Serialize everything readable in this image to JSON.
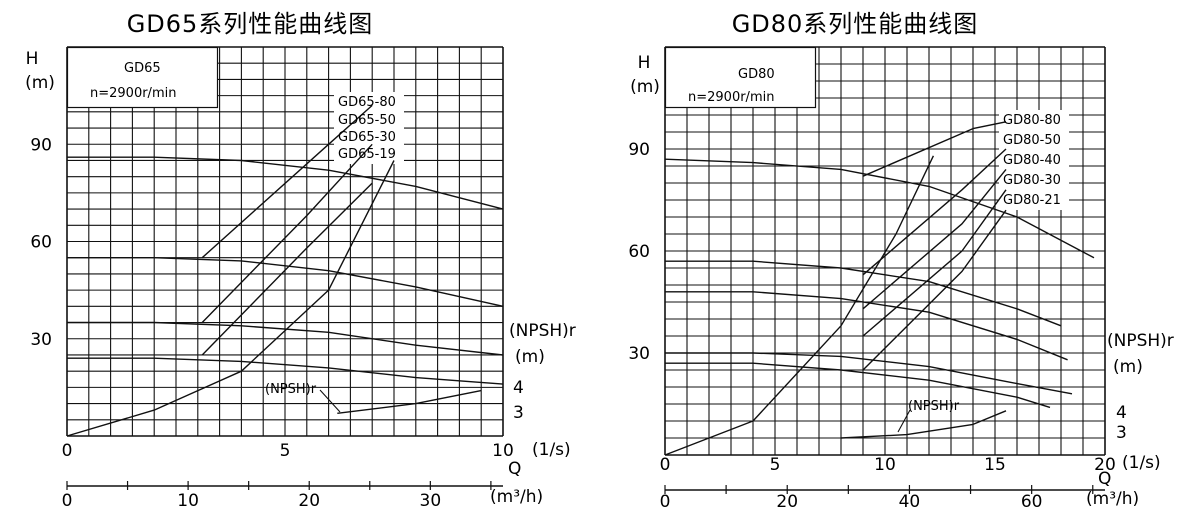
{
  "chart_data": [
    {
      "type": "line",
      "title": "GD65系列性能曲线图",
      "model_label": "GD65",
      "speed_label": "n=2900r/min",
      "y_axis_label": [
        "H",
        "(m)"
      ],
      "y_ticks": [
        "30",
        "60",
        "90"
      ],
      "x_axis_unit": "(1/s)",
      "x_axis_name": "Q",
      "x_ticks": [
        "0",
        "5",
        "10"
      ],
      "x2_axis_unit": "(m³/h)",
      "x2_ticks": [
        "0",
        "10",
        "20",
        "30"
      ],
      "right_axis_label": [
        "(NPSH)r",
        "(m)"
      ],
      "right_ticks": [
        "4",
        "3"
      ],
      "npsh_label": "(NPSH)r",
      "xlim": [
        0,
        10
      ],
      "ylim": [
        0,
        120
      ],
      "legend": [
        "GD65-80",
        "GD65-50",
        "GD65-30",
        "GD65-19"
      ],
      "series": [
        {
          "name": "GD65-80",
          "kind": "head",
          "x": [
            0,
            2,
            4,
            6,
            8,
            10
          ],
          "y": [
            86,
            86,
            85,
            82,
            77,
            70
          ]
        },
        {
          "name": "GD65-50",
          "kind": "head",
          "x": [
            0,
            2,
            4,
            6,
            8,
            10
          ],
          "y": [
            55,
            55,
            54,
            51,
            46,
            40
          ]
        },
        {
          "name": "GD65-30",
          "kind": "head",
          "x": [
            0,
            2,
            4,
            6,
            8,
            10
          ],
          "y": [
            35,
            35,
            34,
            32,
            28,
            25
          ]
        },
        {
          "name": "GD65-19",
          "kind": "head",
          "x": [
            0,
            2,
            4,
            6,
            8,
            10
          ],
          "y": [
            24,
            24,
            23,
            21,
            18,
            16
          ]
        },
        {
          "name": "efficiency-80",
          "kind": "efficiency",
          "x": [
            3.1,
            6.0,
            7.0
          ],
          "y": [
            55,
            90,
            102
          ]
        },
        {
          "name": "efficiency-50",
          "kind": "efficiency",
          "x": [
            3.1,
            5.5,
            7.0
          ],
          "y": [
            35,
            68,
            90
          ]
        },
        {
          "name": "efficiency-30",
          "kind": "efficiency",
          "x": [
            3.1,
            5.5,
            7.0
          ],
          "y": [
            25,
            58,
            78
          ]
        },
        {
          "name": "efficiency-all",
          "kind": "efficiency",
          "x": [
            0,
            2,
            4,
            6,
            7.5
          ],
          "y": [
            0,
            8,
            20,
            45,
            85
          ]
        },
        {
          "name": "npsh",
          "kind": "npsh",
          "x": [
            6.2,
            8,
            9.5
          ],
          "y": [
            7,
            10,
            14
          ]
        }
      ]
    },
    {
      "type": "line",
      "title": "GD80系列性能曲线图",
      "model_label": "GD80",
      "speed_label": "n=2900r/min",
      "y_axis_label": [
        "H",
        "(m)"
      ],
      "y_ticks": [
        "30",
        "60",
        "90"
      ],
      "x_axis_unit": "(1/s)",
      "x_axis_name": "Q",
      "x_ticks": [
        "0",
        "5",
        "10",
        "15",
        "20"
      ],
      "x2_axis_unit": "(m³/h)",
      "x2_ticks": [
        "0",
        "20",
        "40",
        "60"
      ],
      "right_axis_label": [
        "(NPSH)r",
        "(m)"
      ],
      "right_ticks": [
        "4",
        "3"
      ],
      "npsh_label": "(NPSH)r",
      "xlim": [
        0,
        20
      ],
      "ylim": [
        0,
        120
      ],
      "legend": [
        "GD80-80",
        "GD80-50",
        "GD80-40",
        "GD80-30",
        "GD80-21"
      ],
      "series": [
        {
          "name": "GD80-80",
          "kind": "head",
          "x": [
            0,
            4,
            8,
            12,
            16,
            19.5
          ],
          "y": [
            87,
            86,
            84,
            79,
            70,
            58
          ]
        },
        {
          "name": "GD80-50",
          "kind": "head",
          "x": [
            0,
            4,
            8,
            12,
            16,
            18
          ],
          "y": [
            57,
            57,
            55,
            51,
            43,
            38
          ]
        },
        {
          "name": "GD80-40",
          "kind": "head",
          "x": [
            0,
            4,
            8,
            12,
            16,
            18.3
          ],
          "y": [
            48,
            48,
            46,
            42,
            34,
            28
          ]
        },
        {
          "name": "GD80-30",
          "kind": "head",
          "x": [
            0,
            4,
            8,
            12,
            16,
            18.5
          ],
          "y": [
            30,
            30,
            29,
            26,
            21,
            18
          ]
        },
        {
          "name": "GD80-21",
          "kind": "head",
          "x": [
            0,
            4,
            8,
            12,
            16,
            17.5
          ],
          "y": [
            27,
            27,
            25,
            22,
            17,
            14
          ]
        },
        {
          "name": "efficiency-80",
          "kind": "efficiency",
          "x": [
            9,
            14,
            15.5
          ],
          "y": [
            82,
            96,
            98
          ]
        },
        {
          "name": "efficiency-50",
          "kind": "efficiency",
          "x": [
            9,
            13.5,
            15.5
          ],
          "y": [
            53,
            78,
            90
          ]
        },
        {
          "name": "efficiency-40",
          "kind": "efficiency",
          "x": [
            9,
            13.5,
            15.5
          ],
          "y": [
            43,
            68,
            84
          ]
        },
        {
          "name": "efficiency-30",
          "kind": "efficiency",
          "x": [
            9,
            13.5,
            15.5
          ],
          "y": [
            35,
            60,
            78
          ]
        },
        {
          "name": "efficiency-21",
          "kind": "efficiency",
          "x": [
            9,
            13.5,
            15.5
          ],
          "y": [
            25,
            54,
            72
          ]
        },
        {
          "name": "efficiency-all",
          "kind": "efficiency",
          "x": [
            0,
            4,
            8,
            10.5,
            12.2
          ],
          "y": [
            0,
            10,
            38,
            65,
            88
          ]
        },
        {
          "name": "npsh",
          "kind": "npsh",
          "x": [
            8,
            11,
            14,
            15.5
          ],
          "y": [
            5,
            6,
            9,
            13
          ]
        }
      ]
    }
  ]
}
